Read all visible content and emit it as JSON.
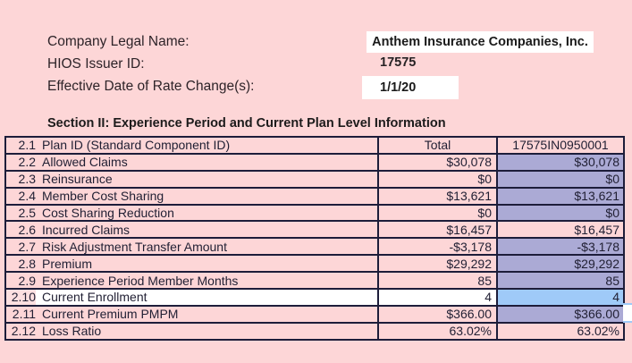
{
  "palette": {
    "background_pink": "#fdd6d7",
    "light_pink_cell": "#fcdfe0",
    "plan_purple": "#abaad5",
    "selection_blue": "#9fcaf8",
    "grid_border": "#1d1d3a",
    "value_box_white": "#ffffff"
  },
  "header": {
    "fields": [
      {
        "label": "Company Legal Name:",
        "value": "Anthem Insurance Companies, Inc."
      },
      {
        "label": "HIOS Issuer ID:",
        "value": "17575"
      },
      {
        "label": "Effective Date of Rate Change(s):",
        "value": "1/1/20"
      }
    ]
  },
  "section": {
    "title": "Section II: Experience Period and Current Plan Level Information"
  },
  "table": {
    "rows": [
      {
        "id": "2.1",
        "label": "Plan ID (Standard Component ID)",
        "total": "Total",
        "plan": "17575IN0950001",
        "plan_bg": "pink",
        "header": true,
        "selected": false
      },
      {
        "id": "2.2",
        "label": "Allowed Claims",
        "total": "$30,078",
        "plan": "$30,078",
        "plan_bg": "purple",
        "header": false,
        "selected": false
      },
      {
        "id": "2.3",
        "label": "Reinsurance",
        "total": "$0",
        "plan": "$0",
        "plan_bg": "purple",
        "header": false,
        "selected": false
      },
      {
        "id": "2.4",
        "label": "Member Cost Sharing",
        "total": "$13,621",
        "plan": "$13,621",
        "plan_bg": "purple",
        "header": false,
        "selected": false
      },
      {
        "id": "2.5",
        "label": "Cost Sharing Reduction",
        "total": "$0",
        "plan": "$0",
        "plan_bg": "purple",
        "header": false,
        "selected": false
      },
      {
        "id": "2.6",
        "label": "Incurred Claims",
        "total": "$16,457",
        "plan": "$16,457",
        "plan_bg": "pink",
        "header": false,
        "selected": false
      },
      {
        "id": "2.7",
        "label": "Risk Adjustment Transfer Amount",
        "total": "-$3,178",
        "plan": "-$3,178",
        "plan_bg": "purple",
        "header": false,
        "selected": false
      },
      {
        "id": "2.8",
        "label": "Premium",
        "total": "$29,292",
        "plan": "$29,292",
        "plan_bg": "purple",
        "header": false,
        "selected": false
      },
      {
        "id": "2.9",
        "label": "Experience Period Member Months",
        "total": "85",
        "plan": "85",
        "plan_bg": "purple",
        "header": false,
        "selected": false
      },
      {
        "id": "2.10",
        "label": "Current Enrollment",
        "total": "4",
        "plan": "4",
        "plan_bg": "blue",
        "header": false,
        "selected": true
      },
      {
        "id": "2.11",
        "label": "Current Premium PMPM",
        "total": "$366.00",
        "plan": "$366.00",
        "plan_bg": "purple",
        "header": false,
        "selected": false
      },
      {
        "id": "2.12",
        "label": "Loss Ratio",
        "total": "63.02%",
        "plan": "63.02%",
        "plan_bg": "pink",
        "header": false,
        "selected": false
      }
    ]
  }
}
